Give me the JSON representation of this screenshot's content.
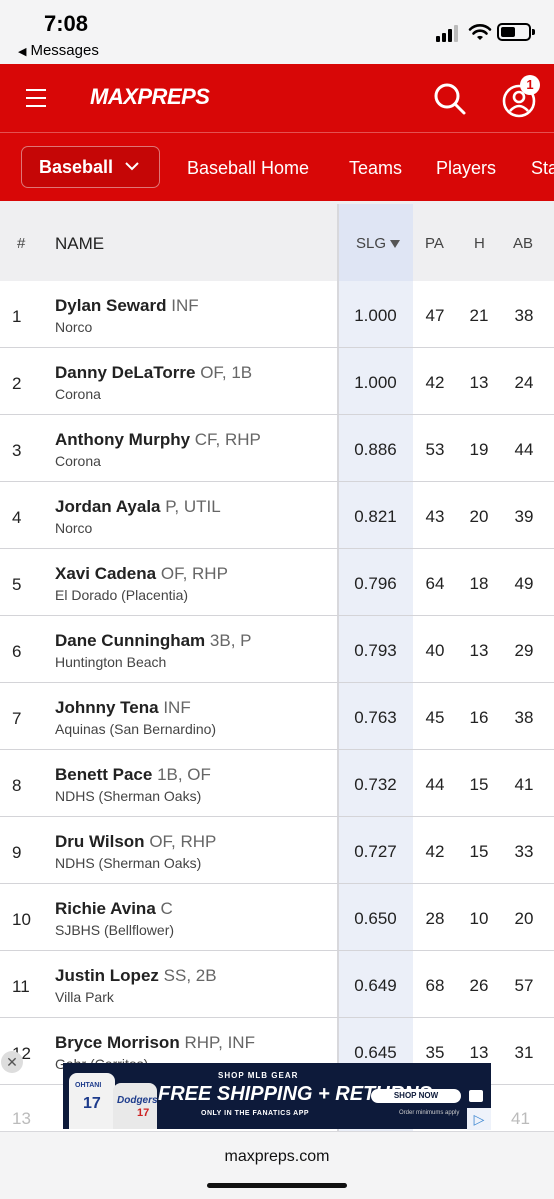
{
  "status_bar": {
    "time": "7:08",
    "back_app": "Messages"
  },
  "header": {
    "logo": "MAXPREPS",
    "notification_count": "1",
    "sport_selector": "Baseball",
    "nav": [
      "Baseball Home",
      "Teams",
      "Players",
      "Sta"
    ]
  },
  "table": {
    "columns": {
      "rank": "#",
      "name": "NAME",
      "slg": "SLG",
      "pa": "PA",
      "h": "H",
      "ab": "AB"
    },
    "rows": [
      {
        "rank": "1",
        "name": "Dylan Seward",
        "pos": "INF",
        "school": "Norco",
        "slg": "1.000",
        "pa": "47",
        "h": "21",
        "ab": "38"
      },
      {
        "rank": "2",
        "name": "Danny DeLaTorre",
        "pos": "OF, 1B",
        "school": "Corona",
        "slg": "1.000",
        "pa": "42",
        "h": "13",
        "ab": "24"
      },
      {
        "rank": "3",
        "name": "Anthony Murphy",
        "pos": "CF, RHP",
        "school": "Corona",
        "slg": "0.886",
        "pa": "53",
        "h": "19",
        "ab": "44"
      },
      {
        "rank": "4",
        "name": "Jordan Ayala",
        "pos": "P, UTIL",
        "school": "Norco",
        "slg": "0.821",
        "pa": "43",
        "h": "20",
        "ab": "39"
      },
      {
        "rank": "5",
        "name": "Xavi Cadena",
        "pos": "OF, RHP",
        "school": "El Dorado (Placentia)",
        "slg": "0.796",
        "pa": "64",
        "h": "18",
        "ab": "49"
      },
      {
        "rank": "6",
        "name": "Dane Cunningham",
        "pos": "3B, P",
        "school": "Huntington Beach",
        "slg": "0.793",
        "pa": "40",
        "h": "13",
        "ab": "29"
      },
      {
        "rank": "7",
        "name": "Johnny Tena",
        "pos": "INF",
        "school": "Aquinas (San Bernardino)",
        "slg": "0.763",
        "pa": "45",
        "h": "16",
        "ab": "38"
      },
      {
        "rank": "8",
        "name": "Benett Pace",
        "pos": "1B, OF",
        "school": "NDHS (Sherman Oaks)",
        "slg": "0.732",
        "pa": "44",
        "h": "15",
        "ab": "41"
      },
      {
        "rank": "9",
        "name": "Dru Wilson",
        "pos": "OF, RHP",
        "school": "NDHS (Sherman Oaks)",
        "slg": "0.727",
        "pa": "42",
        "h": "15",
        "ab": "33"
      },
      {
        "rank": "10",
        "name": "Richie Avina",
        "pos": "C",
        "school": "SJBHS (Bellflower)",
        "slg": "0.650",
        "pa": "28",
        "h": "10",
        "ab": "20"
      },
      {
        "rank": "11",
        "name": "Justin Lopez",
        "pos": "SS, 2B",
        "school": "Villa Park",
        "slg": "0.649",
        "pa": "68",
        "h": "26",
        "ab": "57"
      },
      {
        "rank": "12",
        "name": "Bryce Morrison",
        "pos": "RHP, INF",
        "school": "Gahr (Cerritos)",
        "slg": "0.645",
        "pa": "35",
        "h": "13",
        "ab": "31"
      }
    ],
    "partial_row": {
      "rank": "13",
      "ab": "41"
    }
  },
  "ad": {
    "top": "SHOP MLB GEAR",
    "headline": "FREE SHIPPING + RETURNS",
    "sub": "ONLY IN THE FANATICS APP",
    "button": "SHOP NOW",
    "fine_print": "Order minimums apply",
    "jersey_number": "17",
    "jersey_name": "OHTANI"
  },
  "browser": {
    "url": "maxpreps.com"
  }
}
